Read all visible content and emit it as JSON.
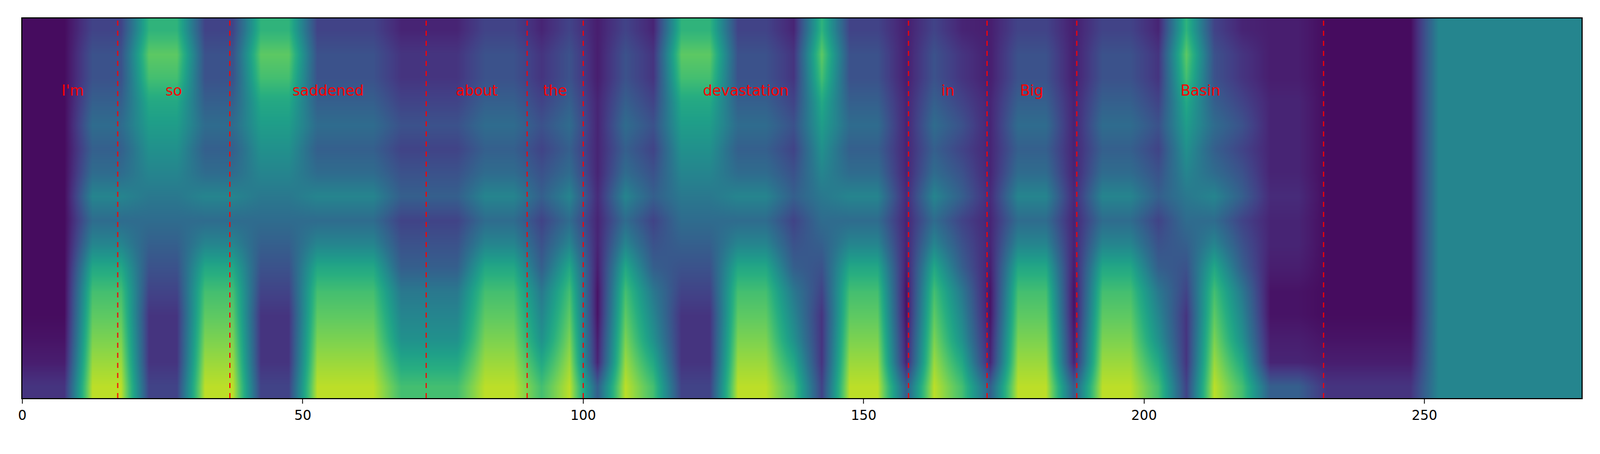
{
  "chart_data": {
    "type": "heatmap",
    "x": [
      2.5,
      7.5,
      12.5,
      17.5,
      22.5,
      27.5,
      32.5,
      37.5,
      42.5,
      47.5,
      52.5,
      57.5,
      62.5,
      67.5,
      72.5,
      77.5,
      82.5,
      87.5,
      92.5,
      97.5,
      102.5,
      107.5,
      112.5,
      117.5,
      122.5,
      127.5,
      132.5,
      137.5,
      142.5,
      147.5,
      152.5,
      157.5,
      162.5,
      167.5,
      172.5,
      177.5,
      182.5,
      187.5,
      192.5,
      197.5,
      202.5,
      207.5,
      212.5,
      217.5,
      222.5,
      227.5,
      232.5,
      237.5,
      242.5,
      247.5,
      252.5,
      257.5,
      262.5,
      267.5,
      272.5,
      277.5
    ],
    "y": [
      0,
      1,
      2,
      3,
      4,
      5,
      6,
      7,
      8,
      9,
      10,
      11,
      12,
      13,
      14,
      15
    ],
    "z": [
      [
        0.15,
        0.15,
        0.9,
        0.9,
        0.2,
        0.2,
        0.9,
        0.9,
        0.2,
        0.2,
        0.9,
        0.9,
        0.9,
        0.7,
        0.7,
        0.7,
        0.9,
        0.9,
        0.7,
        0.9,
        0.3,
        0.9,
        0.7,
        0.2,
        0.2,
        0.9,
        0.9,
        0.7,
        0.2,
        0.9,
        0.9,
        0.3,
        0.9,
        0.7,
        0.3,
        0.9,
        0.9,
        0.3,
        0.9,
        0.9,
        0.7,
        0.2,
        0.9,
        0.7,
        0.3,
        0.3,
        0.15,
        0.15,
        0.15,
        0.15,
        0.45,
        0.45,
        0.45,
        0.45,
        0.45,
        0.45
      ],
      [
        0.08,
        0.08,
        0.85,
        0.85,
        0.15,
        0.15,
        0.85,
        0.85,
        0.15,
        0.15,
        0.85,
        0.85,
        0.85,
        0.6,
        0.6,
        0.6,
        0.85,
        0.85,
        0.6,
        0.85,
        0.1,
        0.85,
        0.6,
        0.15,
        0.15,
        0.85,
        0.85,
        0.6,
        0.15,
        0.85,
        0.85,
        0.1,
        0.85,
        0.6,
        0.1,
        0.85,
        0.85,
        0.1,
        0.85,
        0.85,
        0.6,
        0.15,
        0.85,
        0.6,
        0.1,
        0.1,
        0.08,
        0.08,
        0.08,
        0.08,
        0.45,
        0.45,
        0.45,
        0.45,
        0.45,
        0.45
      ],
      [
        0.05,
        0.05,
        0.8,
        0.8,
        0.15,
        0.15,
        0.8,
        0.8,
        0.15,
        0.15,
        0.8,
        0.8,
        0.8,
        0.5,
        0.5,
        0.5,
        0.8,
        0.8,
        0.5,
        0.8,
        0.08,
        0.8,
        0.5,
        0.15,
        0.15,
        0.8,
        0.8,
        0.5,
        0.15,
        0.8,
        0.8,
        0.08,
        0.8,
        0.5,
        0.08,
        0.8,
        0.8,
        0.08,
        0.8,
        0.8,
        0.5,
        0.15,
        0.8,
        0.5,
        0.08,
        0.08,
        0.05,
        0.05,
        0.05,
        0.05,
        0.45,
        0.45,
        0.45,
        0.45,
        0.45,
        0.45
      ],
      [
        0.03,
        0.03,
        0.75,
        0.75,
        0.15,
        0.15,
        0.75,
        0.75,
        0.15,
        0.15,
        0.75,
        0.75,
        0.75,
        0.45,
        0.45,
        0.45,
        0.75,
        0.75,
        0.45,
        0.75,
        0.05,
        0.75,
        0.45,
        0.15,
        0.15,
        0.75,
        0.75,
        0.45,
        0.15,
        0.75,
        0.75,
        0.05,
        0.75,
        0.45,
        0.05,
        0.75,
        0.75,
        0.05,
        0.75,
        0.75,
        0.45,
        0.15,
        0.75,
        0.45,
        0.05,
        0.05,
        0.03,
        0.03,
        0.03,
        0.03,
        0.45,
        0.45,
        0.45,
        0.45,
        0.45,
        0.45
      ],
      [
        0.03,
        0.03,
        0.7,
        0.7,
        0.2,
        0.2,
        0.7,
        0.7,
        0.2,
        0.2,
        0.7,
        0.7,
        0.7,
        0.4,
        0.4,
        0.4,
        0.7,
        0.7,
        0.4,
        0.7,
        0.05,
        0.7,
        0.4,
        0.2,
        0.2,
        0.7,
        0.7,
        0.4,
        0.2,
        0.7,
        0.7,
        0.05,
        0.7,
        0.4,
        0.05,
        0.7,
        0.7,
        0.05,
        0.7,
        0.7,
        0.4,
        0.2,
        0.7,
        0.4,
        0.05,
        0.05,
        0.03,
        0.03,
        0.03,
        0.03,
        0.45,
        0.45,
        0.45,
        0.45,
        0.45,
        0.45
      ],
      [
        0.03,
        0.03,
        0.6,
        0.6,
        0.25,
        0.25,
        0.6,
        0.6,
        0.25,
        0.25,
        0.6,
        0.6,
        0.6,
        0.3,
        0.3,
        0.3,
        0.6,
        0.6,
        0.3,
        0.6,
        0.08,
        0.6,
        0.3,
        0.25,
        0.25,
        0.6,
        0.6,
        0.3,
        0.25,
        0.6,
        0.6,
        0.08,
        0.6,
        0.3,
        0.08,
        0.6,
        0.6,
        0.08,
        0.6,
        0.6,
        0.3,
        0.25,
        0.6,
        0.3,
        0.08,
        0.08,
        0.03,
        0.03,
        0.03,
        0.03,
        0.45,
        0.45,
        0.45,
        0.45,
        0.45,
        0.45
      ],
      [
        0.03,
        0.03,
        0.45,
        0.45,
        0.3,
        0.3,
        0.45,
        0.45,
        0.3,
        0.3,
        0.45,
        0.45,
        0.45,
        0.25,
        0.25,
        0.25,
        0.45,
        0.45,
        0.25,
        0.45,
        0.1,
        0.45,
        0.25,
        0.3,
        0.3,
        0.45,
        0.45,
        0.25,
        0.3,
        0.45,
        0.45,
        0.1,
        0.45,
        0.25,
        0.1,
        0.45,
        0.45,
        0.1,
        0.45,
        0.45,
        0.25,
        0.3,
        0.45,
        0.25,
        0.1,
        0.1,
        0.03,
        0.03,
        0.03,
        0.03,
        0.45,
        0.45,
        0.45,
        0.45,
        0.45,
        0.45
      ],
      [
        0.03,
        0.03,
        0.35,
        0.35,
        0.35,
        0.35,
        0.35,
        0.35,
        0.35,
        0.35,
        0.35,
        0.35,
        0.35,
        0.2,
        0.2,
        0.2,
        0.35,
        0.35,
        0.2,
        0.35,
        0.1,
        0.35,
        0.2,
        0.35,
        0.35,
        0.35,
        0.35,
        0.2,
        0.35,
        0.35,
        0.35,
        0.1,
        0.35,
        0.2,
        0.1,
        0.35,
        0.35,
        0.1,
        0.35,
        0.35,
        0.2,
        0.35,
        0.35,
        0.2,
        0.1,
        0.1,
        0.03,
        0.03,
        0.03,
        0.03,
        0.45,
        0.45,
        0.45,
        0.45,
        0.45,
        0.45
      ],
      [
        0.03,
        0.03,
        0.45,
        0.45,
        0.4,
        0.4,
        0.45,
        0.45,
        0.4,
        0.4,
        0.45,
        0.45,
        0.45,
        0.3,
        0.3,
        0.3,
        0.45,
        0.45,
        0.3,
        0.45,
        0.12,
        0.45,
        0.3,
        0.4,
        0.4,
        0.45,
        0.45,
        0.3,
        0.4,
        0.45,
        0.45,
        0.12,
        0.45,
        0.3,
        0.12,
        0.45,
        0.45,
        0.12,
        0.45,
        0.45,
        0.3,
        0.4,
        0.45,
        0.3,
        0.12,
        0.12,
        0.03,
        0.03,
        0.03,
        0.03,
        0.45,
        0.45,
        0.45,
        0.45,
        0.45,
        0.45
      ],
      [
        0.03,
        0.03,
        0.35,
        0.35,
        0.45,
        0.45,
        0.35,
        0.35,
        0.45,
        0.45,
        0.35,
        0.35,
        0.35,
        0.25,
        0.25,
        0.25,
        0.35,
        0.35,
        0.25,
        0.35,
        0.1,
        0.35,
        0.25,
        0.45,
        0.45,
        0.35,
        0.35,
        0.25,
        0.45,
        0.35,
        0.35,
        0.1,
        0.35,
        0.25,
        0.1,
        0.35,
        0.35,
        0.1,
        0.35,
        0.35,
        0.25,
        0.45,
        0.35,
        0.25,
        0.1,
        0.1,
        0.03,
        0.03,
        0.03,
        0.03,
        0.45,
        0.45,
        0.45,
        0.45,
        0.45,
        0.45
      ],
      [
        0.03,
        0.03,
        0.3,
        0.3,
        0.5,
        0.5,
        0.3,
        0.3,
        0.5,
        0.5,
        0.3,
        0.3,
        0.3,
        0.2,
        0.2,
        0.2,
        0.3,
        0.3,
        0.2,
        0.3,
        0.1,
        0.3,
        0.2,
        0.5,
        0.5,
        0.3,
        0.3,
        0.2,
        0.5,
        0.3,
        0.3,
        0.1,
        0.3,
        0.2,
        0.1,
        0.3,
        0.3,
        0.1,
        0.3,
        0.3,
        0.2,
        0.5,
        0.3,
        0.2,
        0.1,
        0.1,
        0.03,
        0.03,
        0.03,
        0.03,
        0.45,
        0.45,
        0.45,
        0.45,
        0.45,
        0.45
      ],
      [
        0.03,
        0.03,
        0.35,
        0.35,
        0.55,
        0.55,
        0.35,
        0.35,
        0.55,
        0.55,
        0.35,
        0.35,
        0.35,
        0.25,
        0.25,
        0.25,
        0.35,
        0.35,
        0.25,
        0.35,
        0.1,
        0.35,
        0.25,
        0.55,
        0.55,
        0.35,
        0.35,
        0.25,
        0.55,
        0.35,
        0.35,
        0.1,
        0.35,
        0.25,
        0.1,
        0.35,
        0.35,
        0.1,
        0.35,
        0.35,
        0.25,
        0.55,
        0.35,
        0.25,
        0.1,
        0.1,
        0.03,
        0.03,
        0.03,
        0.03,
        0.45,
        0.45,
        0.45,
        0.45,
        0.45,
        0.45
      ],
      [
        0.03,
        0.03,
        0.3,
        0.3,
        0.6,
        0.6,
        0.3,
        0.3,
        0.6,
        0.6,
        0.3,
        0.3,
        0.3,
        0.2,
        0.2,
        0.2,
        0.3,
        0.3,
        0.2,
        0.3,
        0.1,
        0.3,
        0.2,
        0.6,
        0.6,
        0.3,
        0.3,
        0.2,
        0.6,
        0.3,
        0.3,
        0.1,
        0.3,
        0.2,
        0.1,
        0.3,
        0.3,
        0.1,
        0.3,
        0.3,
        0.2,
        0.6,
        0.3,
        0.2,
        0.1,
        0.1,
        0.03,
        0.03,
        0.03,
        0.03,
        0.45,
        0.45,
        0.45,
        0.45,
        0.45,
        0.45
      ],
      [
        0.03,
        0.03,
        0.25,
        0.25,
        0.7,
        0.7,
        0.25,
        0.25,
        0.7,
        0.7,
        0.25,
        0.25,
        0.25,
        0.15,
        0.15,
        0.15,
        0.25,
        0.25,
        0.15,
        0.25,
        0.08,
        0.25,
        0.15,
        0.7,
        0.7,
        0.25,
        0.25,
        0.15,
        0.7,
        0.25,
        0.25,
        0.08,
        0.25,
        0.15,
        0.08,
        0.25,
        0.25,
        0.08,
        0.25,
        0.25,
        0.15,
        0.7,
        0.25,
        0.15,
        0.08,
        0.08,
        0.03,
        0.03,
        0.03,
        0.03,
        0.45,
        0.45,
        0.45,
        0.45,
        0.45,
        0.45
      ],
      [
        0.03,
        0.03,
        0.25,
        0.25,
        0.75,
        0.75,
        0.25,
        0.25,
        0.75,
        0.75,
        0.25,
        0.25,
        0.25,
        0.15,
        0.15,
        0.15,
        0.25,
        0.25,
        0.15,
        0.25,
        0.08,
        0.25,
        0.15,
        0.75,
        0.75,
        0.25,
        0.25,
        0.15,
        0.75,
        0.25,
        0.25,
        0.08,
        0.25,
        0.15,
        0.08,
        0.25,
        0.25,
        0.08,
        0.25,
        0.25,
        0.15,
        0.75,
        0.25,
        0.15,
        0.08,
        0.08,
        0.03,
        0.03,
        0.03,
        0.03,
        0.45,
        0.45,
        0.45,
        0.45,
        0.45,
        0.45
      ],
      [
        0.03,
        0.03,
        0.2,
        0.2,
        0.65,
        0.65,
        0.2,
        0.2,
        0.65,
        0.65,
        0.2,
        0.2,
        0.2,
        0.1,
        0.1,
        0.1,
        0.2,
        0.2,
        0.1,
        0.2,
        0.08,
        0.2,
        0.1,
        0.65,
        0.65,
        0.2,
        0.2,
        0.1,
        0.65,
        0.2,
        0.2,
        0.08,
        0.2,
        0.1,
        0.08,
        0.2,
        0.2,
        0.08,
        0.2,
        0.2,
        0.1,
        0.65,
        0.2,
        0.1,
        0.08,
        0.08,
        0.03,
        0.03,
        0.03,
        0.03,
        0.45,
        0.45,
        0.45,
        0.45,
        0.45,
        0.45
      ]
    ],
    "zlim": [
      0,
      1
    ],
    "xlim": [
      0,
      278
    ],
    "xticks": [
      0,
      50,
      100,
      150,
      200,
      250
    ],
    "ylim": [
      -0.5,
      15.5
    ],
    "tick_labels": "x",
    "words": [
      {
        "text": "I'm",
        "x": 9
      },
      {
        "text": "so",
        "x": 27
      },
      {
        "text": "saddened",
        "x": 54.5
      },
      {
        "text": "about",
        "x": 81
      },
      {
        "text": "the",
        "x": 95
      },
      {
        "text": "devastation",
        "x": 129
      },
      {
        "text": "in",
        "x": 165
      },
      {
        "text": "Big",
        "x": 180
      },
      {
        "text": "Basin",
        "x": 210
      }
    ],
    "boundaries": [
      17,
      37,
      72,
      90,
      100,
      158,
      172,
      188,
      232
    ]
  }
}
